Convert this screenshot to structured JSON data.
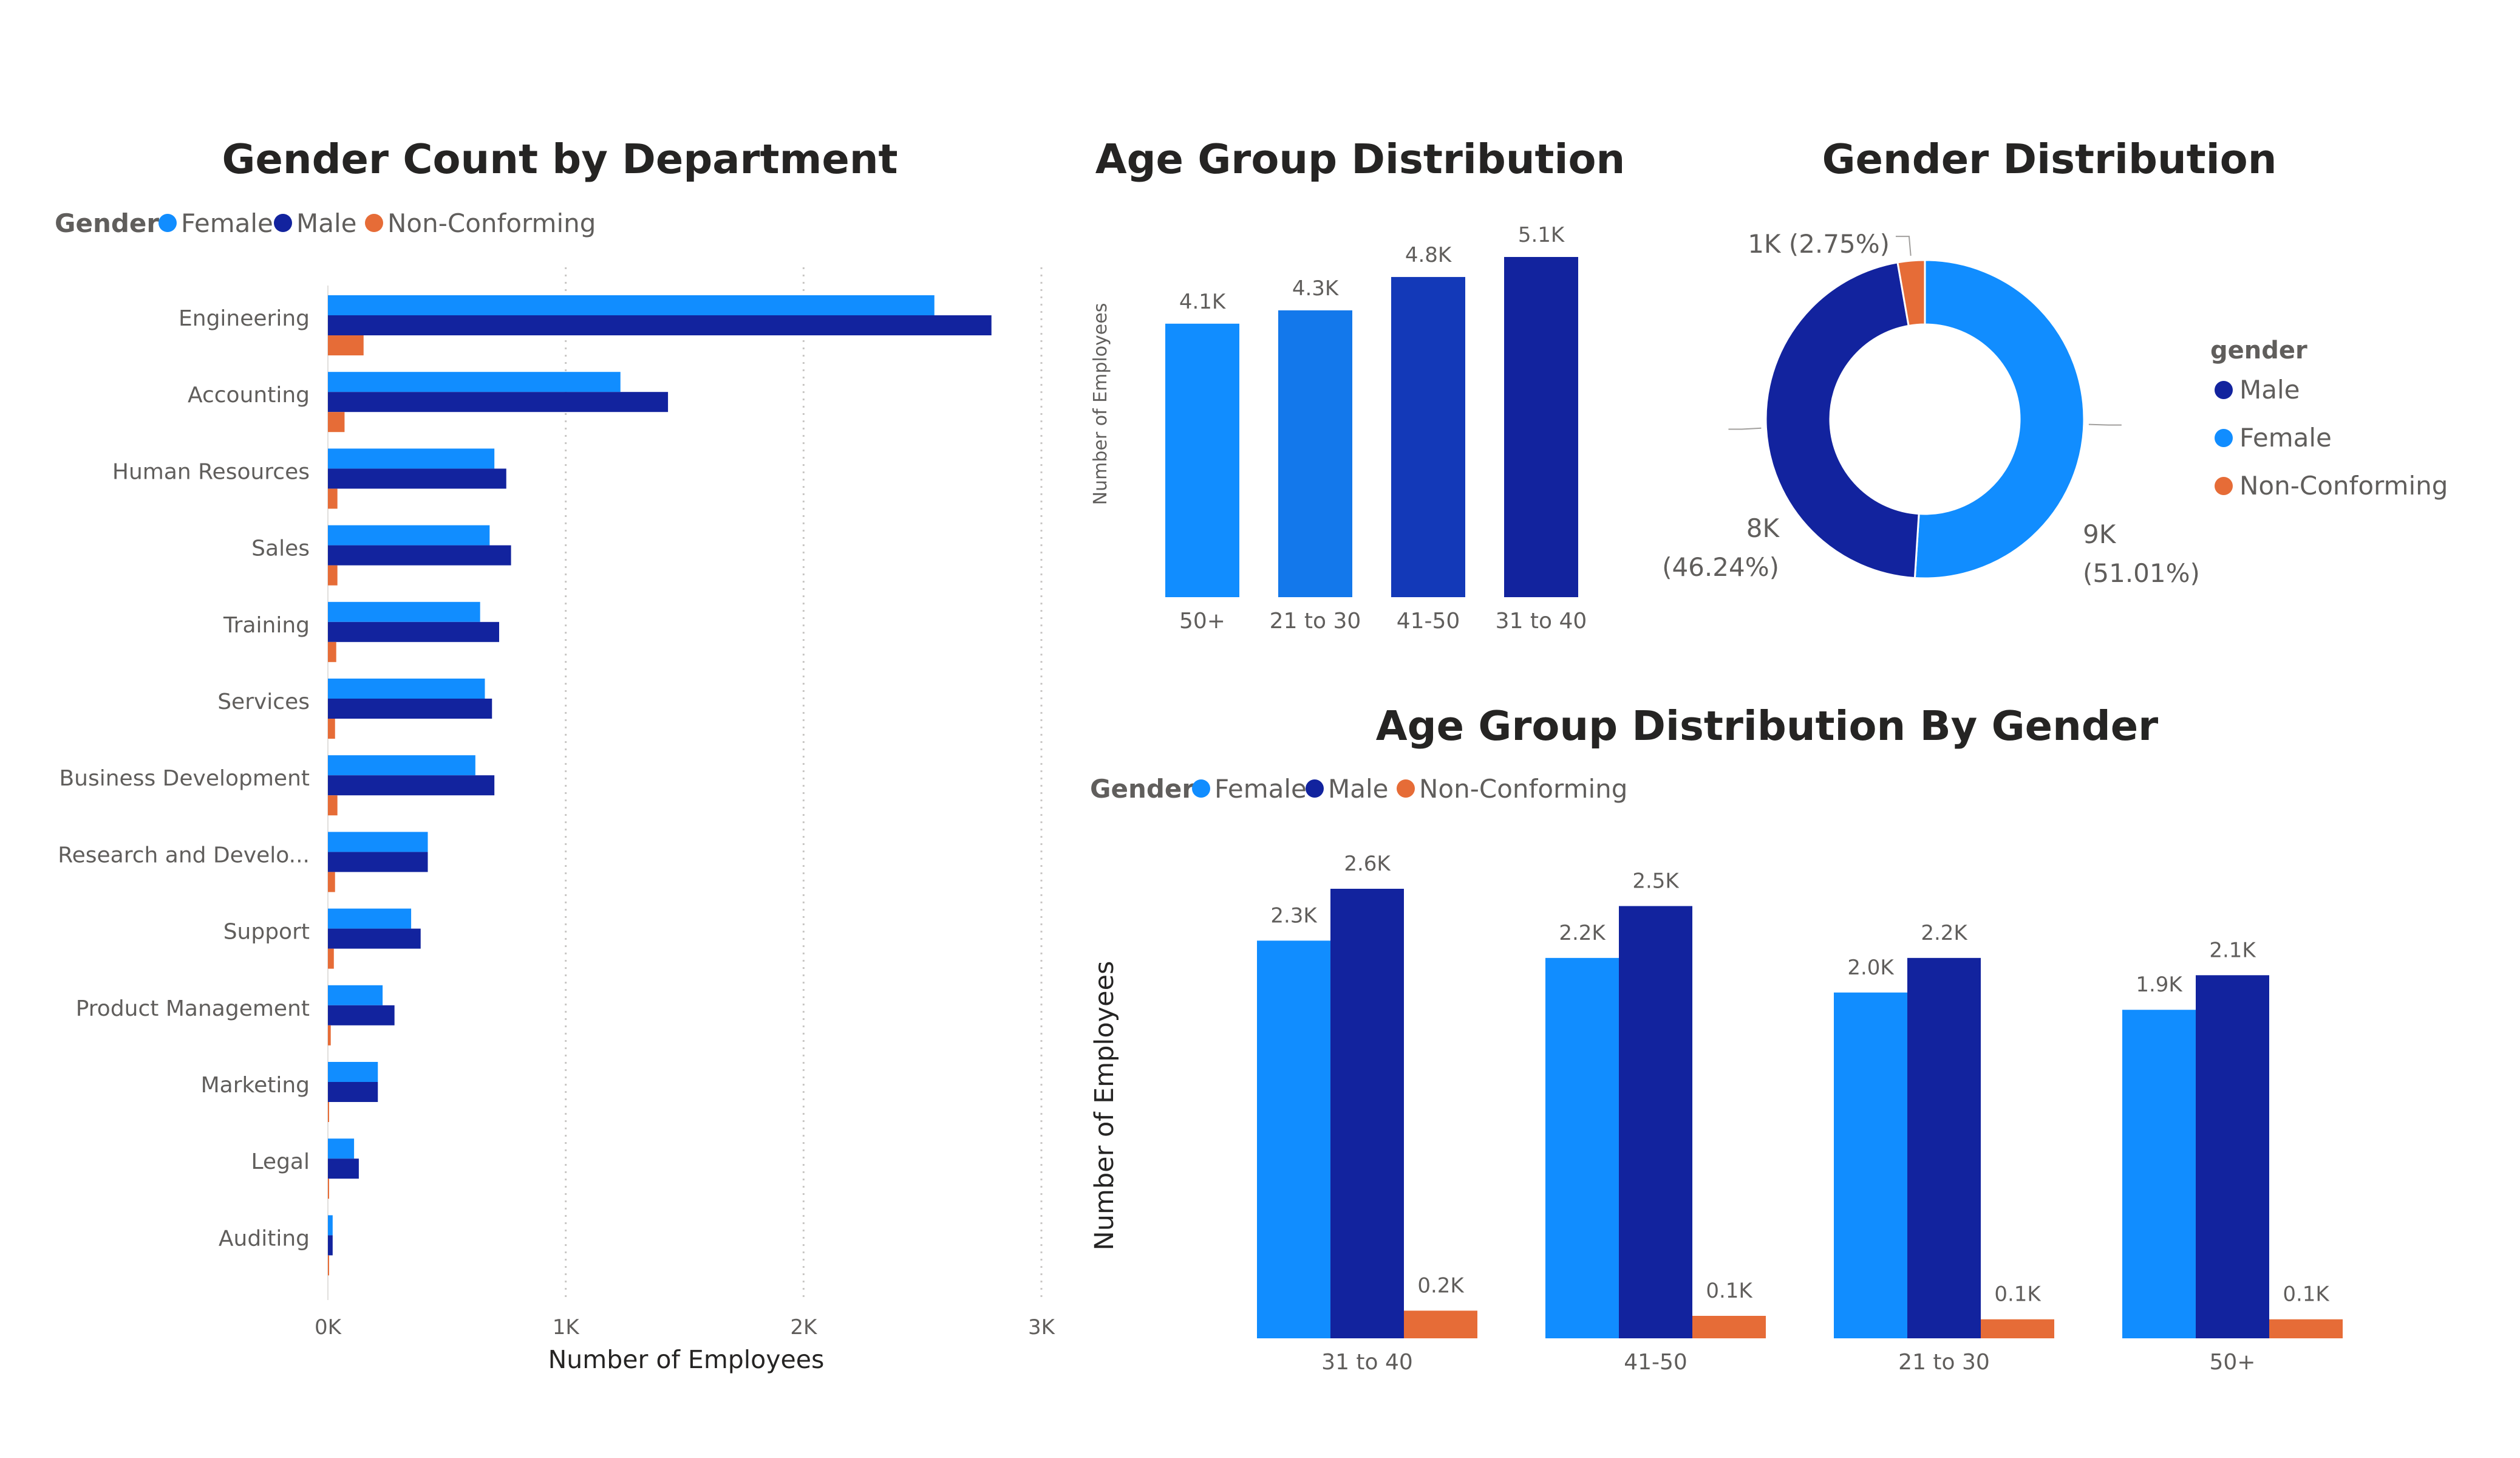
{
  "colors": {
    "female": "#118DFF",
    "male": "#12239E",
    "nonconforming": "#E66C37"
  },
  "chart_data": [
    {
      "type": "bar",
      "orientation": "horizontal",
      "title": "Gender Count by Department",
      "legend": {
        "title": "Gender",
        "position": "top-left",
        "entries": [
          "Female",
          "Male",
          "Non-Conforming"
        ]
      },
      "categories": [
        "Engineering",
        "Accounting",
        "Human Resources",
        "Sales",
        "Training",
        "Services",
        "Business Development",
        "Research and Develo...",
        "Support",
        "Product Management",
        "Marketing",
        "Legal",
        "Auditing"
      ],
      "series": [
        {
          "name": "Female",
          "values": [
            2550,
            1230,
            700,
            680,
            640,
            660,
            620,
            420,
            350,
            230,
            210,
            110,
            20
          ]
        },
        {
          "name": "Male",
          "values": [
            2790,
            1430,
            750,
            770,
            720,
            690,
            700,
            420,
            390,
            280,
            210,
            130,
            20
          ]
        },
        {
          "name": "Non-Conforming",
          "values": [
            150,
            70,
            40,
            40,
            35,
            30,
            40,
            30,
            25,
            12,
            5,
            5,
            3
          ]
        }
      ],
      "xlabel": "Number of Employees",
      "xlim": [
        0,
        3000
      ],
      "xticks": [
        "0K",
        "1K",
        "2K",
        "3K"
      ],
      "grid": true
    },
    {
      "type": "bar",
      "title": "Age Group Distribution",
      "categories": [
        "50+",
        "21 to 30",
        "41-50",
        "31 to 40"
      ],
      "values": [
        4100,
        4300,
        4800,
        5100
      ],
      "data_labels": [
        "4.1K",
        "4.3K",
        "4.8K",
        "5.1K"
      ],
      "ylabel": "Number of Employees",
      "ylim": [
        0,
        5400
      ]
    },
    {
      "type": "pie",
      "variant": "donut",
      "title": "Gender Distribution",
      "legend": {
        "title": "gender",
        "position": "right",
        "entries": [
          "Male",
          "Female",
          "Non-Conforming"
        ]
      },
      "slices": [
        {
          "name": "Male",
          "value": 51.01,
          "label_line1": "9K",
          "label_line2": "(51.01%)"
        },
        {
          "name": "Female",
          "value": 46.24,
          "label_line1": "8K",
          "label_line2": "(46.24%)"
        },
        {
          "name": "Non-Conforming",
          "value": 2.75,
          "label_line1": "1K (2.75%)",
          "label_line2": ""
        }
      ]
    },
    {
      "type": "bar",
      "title": "Age Group Distribution By Gender",
      "legend": {
        "title": "Gender",
        "position": "top-left",
        "entries": [
          "Female",
          "Male",
          "Non-Conforming"
        ]
      },
      "categories": [
        "31 to 40",
        "41-50",
        "21 to 30",
        "50+"
      ],
      "series": [
        {
          "name": "Female",
          "values": [
            2300,
            2200,
            2000,
            1900
          ],
          "labels": [
            "2.3K",
            "2.2K",
            "2.0K",
            "1.9K"
          ]
        },
        {
          "name": "Male",
          "values": [
            2600,
            2500,
            2200,
            2100
          ],
          "labels": [
            "2.6K",
            "2.5K",
            "2.2K",
            "2.1K"
          ]
        },
        {
          "name": "Non-Conforming",
          "values": [
            160,
            130,
            110,
            110
          ],
          "labels": [
            "0.2K",
            "0.1K",
            "0.1K",
            "0.1K"
          ]
        }
      ],
      "ylabel": "Number of Employees",
      "ylim": [
        0,
        2800
      ]
    }
  ]
}
